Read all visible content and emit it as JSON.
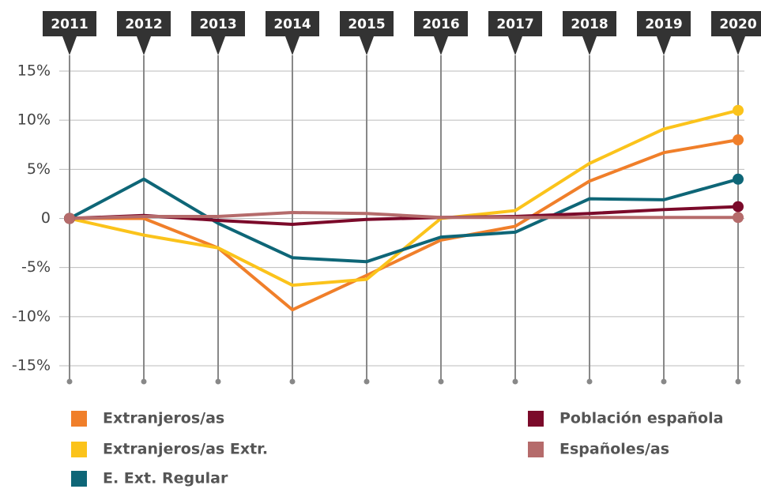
{
  "chart_data": {
    "type": "line",
    "categories": [
      "2011",
      "2012",
      "2013",
      "2014",
      "2015",
      "2016",
      "2017",
      "2018",
      "2019",
      "2020"
    ],
    "series": [
      {
        "name": "Extranjeros/as",
        "color": "#f07f2a",
        "values": [
          0,
          0,
          -3,
          -9.3,
          -5.8,
          -2.2,
          -0.8,
          3.8,
          6.7,
          8.0
        ]
      },
      {
        "name": "Extranjeros/as Extr.",
        "color": "#fbc31b",
        "values": [
          0,
          -1.7,
          -3.0,
          -6.8,
          -6.2,
          0,
          0.8,
          5.6,
          9.1,
          11.0
        ]
      },
      {
        "name": "E. Ext. Regular",
        "color": "#0e6677",
        "values": [
          0,
          4.0,
          -0.5,
          -4.0,
          -4.4,
          -1.9,
          -1.4,
          2.0,
          1.9,
          4.0
        ]
      },
      {
        "name": "Población española",
        "color": "#7b0a2a",
        "values": [
          0,
          0.3,
          -0.2,
          -0.6,
          -0.1,
          0.1,
          0.2,
          0.5,
          0.9,
          1.2
        ]
      },
      {
        "name": "Españoles/as",
        "color": "#b56b6b",
        "values": [
          0,
          0.2,
          0.2,
          0.6,
          0.5,
          0.1,
          0.1,
          0.1,
          0.1,
          0.1
        ]
      }
    ],
    "ylim": [
      -15,
      15
    ],
    "yticks": [
      {
        "value": 15,
        "label": "15%"
      },
      {
        "value": 10,
        "label": "10%"
      },
      {
        "value": 5,
        "label": "5%"
      },
      0,
      {
        "value": -5,
        "label": "-5%"
      },
      {
        "value": -10,
        "label": "-10%"
      },
      {
        "value": -15,
        "label": "-15%"
      }
    ],
    "grid": true
  }
}
